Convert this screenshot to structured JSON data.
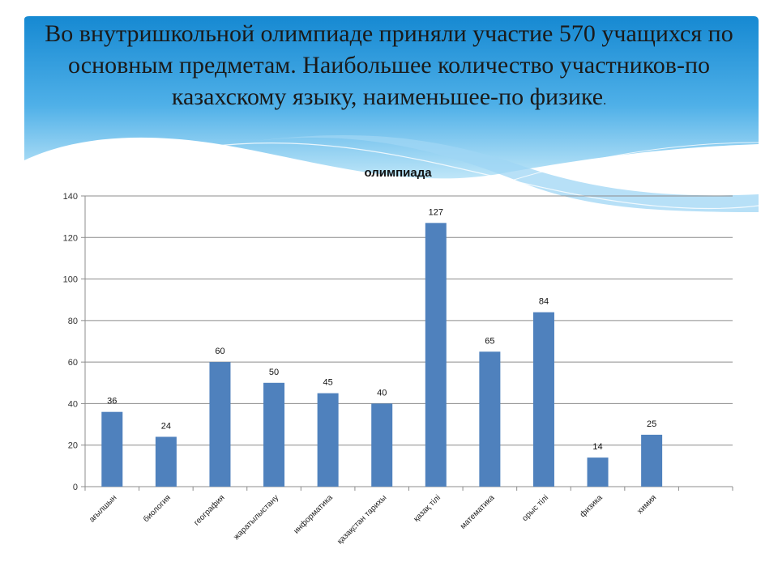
{
  "slide": {
    "title_main": "Во внутришкольной олимпиаде приняли участие 570 учащихся по основным предметам. Наибольшее количество участников-по казахскому языку, наименьшее-по физике",
    "title_suffix": ".",
    "colors": {
      "banner_top": "#1a8fd6",
      "banner_bottom": "#b9e3f7",
      "bar": "#4f81bd",
      "grid": "#8c8c8c"
    }
  },
  "chart_data": {
    "type": "bar",
    "title": "олимпиада",
    "categories": [
      "ағылшын",
      "биология",
      "география",
      "жаратылыстану",
      "информатика",
      "қазақстан тарихы",
      "қазақ тілі",
      "математика",
      "орыс тілі",
      "физика",
      "химия",
      ""
    ],
    "values": [
      36,
      24,
      60,
      50,
      45,
      40,
      127,
      65,
      84,
      14,
      25,
      null
    ],
    "ylim": [
      0,
      140
    ],
    "yticks": [
      0,
      20,
      40,
      60,
      80,
      100,
      120,
      140
    ],
    "grid": true,
    "legend": "none",
    "data_labels": true
  }
}
